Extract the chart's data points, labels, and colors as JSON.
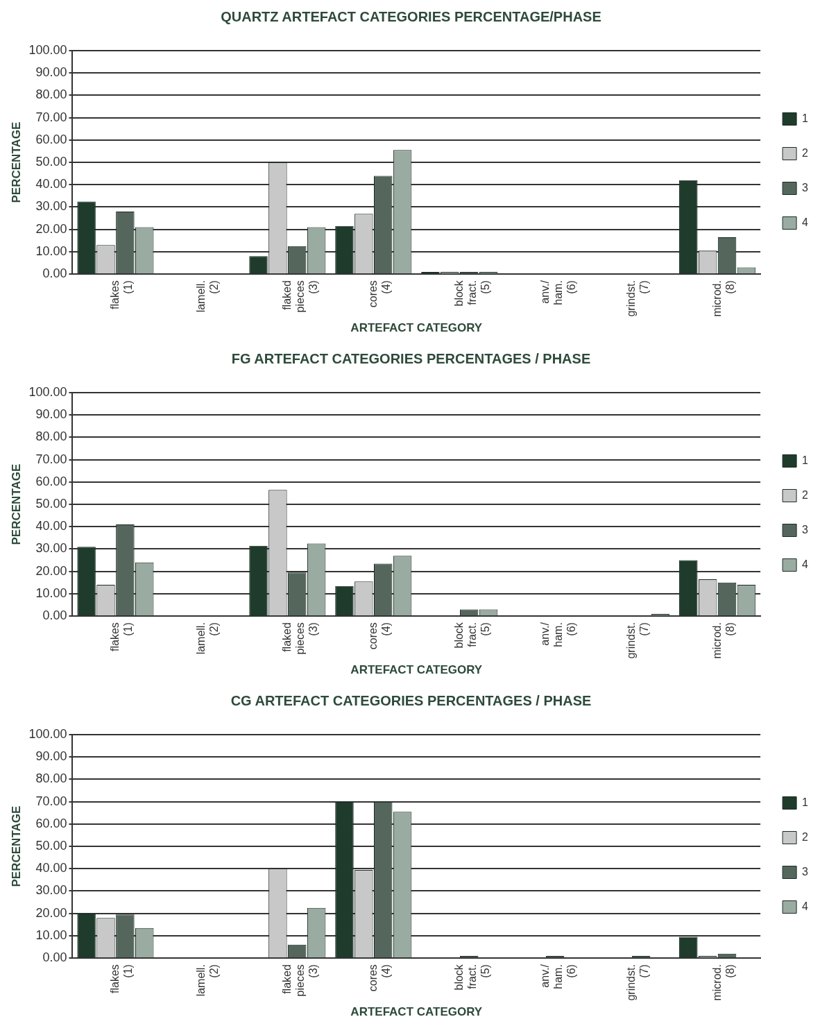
{
  "chart_data": [
    {
      "type": "bar",
      "title": "QUARTZ ARTEFACT CATEGORIES PERCENTAGE/PHASE",
      "xlabel": "ARTEFACT CATEGORY",
      "ylabel": "PERCENTAGE",
      "categories": [
        "flakes (1)",
        "lamell. (2)",
        "flaked pieces (3)",
        "cores (4)",
        "block fract. (5)",
        "anv./ ham. (6)",
        "grindst. (7)",
        "microd. (8)"
      ],
      "series": [
        {
          "name": "1",
          "color": "#1e3b2c",
          "values": [
            32.5,
            0,
            8,
            21.5,
            1,
            0,
            0,
            42
          ]
        },
        {
          "name": "2",
          "color": "#c8c8c8",
          "values": [
            13,
            0,
            50,
            27,
            1,
            0,
            0,
            10.5
          ]
        },
        {
          "name": "3",
          "color": "#55675d",
          "values": [
            28,
            0,
            12.5,
            44,
            1,
            0,
            0,
            16.5
          ]
        },
        {
          "name": "4",
          "color": "#9aaba2",
          "values": [
            21,
            0,
            21,
            55.5,
            1,
            0,
            0,
            3
          ]
        }
      ],
      "ylim": [
        0,
        100
      ],
      "yticks": [
        {
          "value": 0,
          "label": "0.00"
        },
        {
          "value": 10,
          "label": "10.00"
        },
        {
          "value": 20,
          "label": "20.00"
        },
        {
          "value": 30,
          "label": "30.00"
        },
        {
          "value": 40,
          "label": "40.00"
        },
        {
          "value": 50,
          "label": "50.00"
        },
        {
          "value": 60,
          "label": "60.00"
        },
        {
          "value": 70,
          "label": "70.00"
        },
        {
          "value": 80,
          "label": "80.00"
        },
        {
          "value": 90,
          "label": "90.00"
        },
        {
          "value": 100,
          "label": "100.00"
        }
      ],
      "grid": "y",
      "legend": "right"
    },
    {
      "type": "bar",
      "title": "FG ARTEFACT CATEGORIES PERCENTAGES / PHASE",
      "xlabel": "ARTEFACT CATEGORY",
      "ylabel": "PERCENTAGE",
      "categories": [
        "flakes (1)",
        "lamell. (2)",
        "flaked pieces (3)",
        "cores (4)",
        "block fract. (5)",
        "anv./ ham. (6)",
        "grindst. (7)",
        "microd. (8)"
      ],
      "series": [
        {
          "name": "1",
          "color": "#1e3b2c",
          "values": [
            31,
            0,
            31.5,
            13.5,
            0,
            0,
            0,
            25
          ]
        },
        {
          "name": "2",
          "color": "#c8c8c8",
          "values": [
            14,
            0,
            56.5,
            15.5,
            0,
            0,
            0,
            16.5
          ]
        },
        {
          "name": "3",
          "color": "#55675d",
          "values": [
            41,
            0,
            19.5,
            23.5,
            3,
            0,
            0,
            15
          ]
        },
        {
          "name": "4",
          "color": "#9aaba2",
          "values": [
            24,
            0,
            32.5,
            27,
            3,
            0,
            1,
            14
          ]
        }
      ],
      "ylim": [
        0,
        100
      ],
      "yticks": [
        {
          "value": 0,
          "label": "0.00"
        },
        {
          "value": 10,
          "label": "10.00"
        },
        {
          "value": 20,
          "label": "20.00"
        },
        {
          "value": 30,
          "label": "30.00"
        },
        {
          "value": 40,
          "label": "40.00"
        },
        {
          "value": 50,
          "label": "50.00"
        },
        {
          "value": 60,
          "label": "60.00"
        },
        {
          "value": 70,
          "label": "70.00"
        },
        {
          "value": 80,
          "label": "80.00"
        },
        {
          "value": 90,
          "label": "90.00"
        },
        {
          "value": 100,
          "label": "100.00"
        }
      ],
      "grid": "y",
      "legend": "right"
    },
    {
      "type": "bar",
      "title": "CG ARTEFACT CATEGORIES PERCENTAGES / PHASE",
      "xlabel": "ARTEFACT CATEGORY",
      "ylabel": "PERCENTAGE",
      "categories": [
        "flakes (1)",
        "lamell. (2)",
        "flaked pieces (3)",
        "cores (4)",
        "block fract. (5)",
        "anv./ ham. (6)",
        "grindst. (7)",
        "microd. (8)"
      ],
      "series": [
        {
          "name": "1",
          "color": "#1e3b2c",
          "values": [
            20,
            0,
            0,
            70,
            0,
            0,
            0,
            9.5
          ]
        },
        {
          "name": "2",
          "color": "#c8c8c8",
          "values": [
            18,
            0,
            40,
            39.5,
            0,
            0,
            0,
            1
          ]
        },
        {
          "name": "3",
          "color": "#55675d",
          "values": [
            19.5,
            0,
            6,
            70,
            1,
            1,
            1,
            2
          ]
        },
        {
          "name": "4",
          "color": "#9aaba2",
          "values": [
            13.5,
            0,
            22.5,
            65.5,
            0,
            0,
            0,
            0
          ]
        }
      ],
      "ylim": [
        0,
        100
      ],
      "yticks": [
        {
          "value": 0,
          "label": "0.00"
        },
        {
          "value": 10,
          "label": "10.00"
        },
        {
          "value": 20,
          "label": "20.00"
        },
        {
          "value": 30,
          "label": "30.00"
        },
        {
          "value": 40,
          "label": "40.00"
        },
        {
          "value": 50,
          "label": "50.00"
        },
        {
          "value": 60,
          "label": "60.00"
        },
        {
          "value": 70,
          "label": "70.00"
        },
        {
          "value": 80,
          "label": "80.00"
        },
        {
          "value": 90,
          "label": "90.00"
        },
        {
          "value": 100,
          "label": "100.00"
        }
      ],
      "grid": "y",
      "legend": "right"
    }
  ]
}
